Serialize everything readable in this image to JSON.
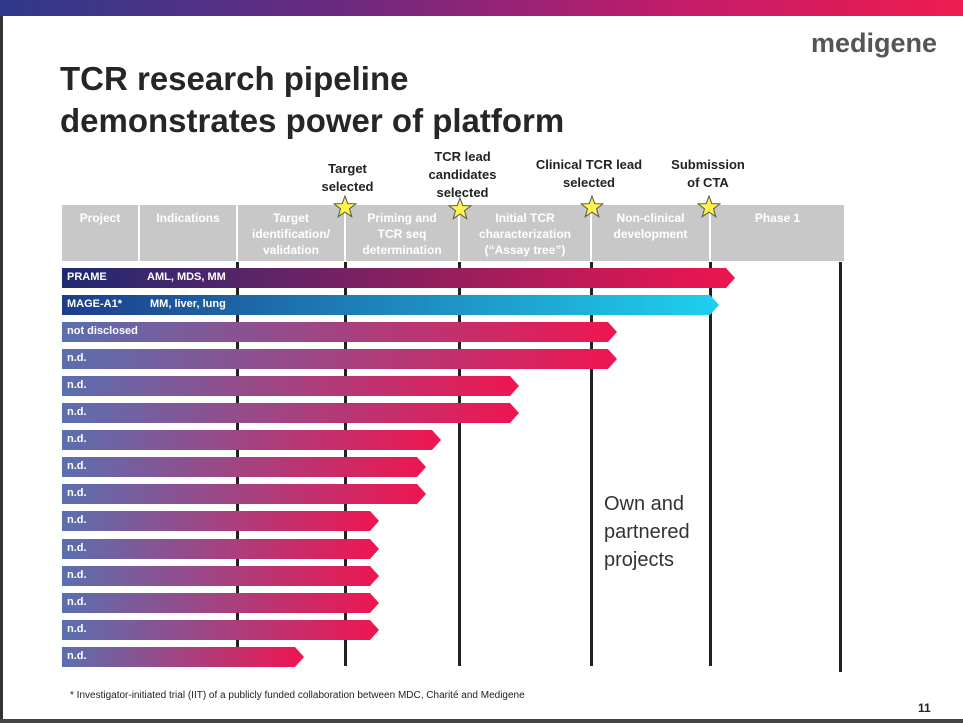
{
  "logo": "medigene",
  "title_lines": [
    "TCR research pipeline",
    "demonstrates power of platform"
  ],
  "milestones": [
    {
      "lines": [
        "Target",
        "selected"
      ]
    },
    {
      "lines": [
        "TCR lead",
        "candidates",
        "selected"
      ]
    },
    {
      "lines": [
        "Clinical TCR lead",
        "selected"
      ]
    },
    {
      "lines": [
        "Submission",
        "of CTA"
      ]
    }
  ],
  "columns": [
    {
      "lines": [
        "Project"
      ]
    },
    {
      "lines": [
        "Indications"
      ]
    },
    {
      "lines": [
        "Target",
        "identification/",
        "validation"
      ]
    },
    {
      "lines": [
        "Priming and",
        "TCR seq",
        "determination"
      ]
    },
    {
      "lines": [
        "Initial TCR",
        "characterization",
        "(“Assay tree”)"
      ]
    },
    {
      "lines": [
        "Non-clinical",
        "development"
      ]
    },
    {
      "lines": [
        "Phase 1"
      ]
    }
  ],
  "colors": {
    "bar_start": "#5a6fb0",
    "bar_end": "#ef1550",
    "prame_start": "#1f2a70",
    "mage_start": "#1d3d8a",
    "mage_end": "#1ed0f0",
    "header_bg": "#c8c8c8"
  },
  "projects": [
    {
      "name": "PRAME",
      "indication": "AML, MDS, MM",
      "progress": 0.86,
      "style": "prame"
    },
    {
      "name": "MAGE-A1*",
      "indication": "MM, liver, lung",
      "progress": 0.84,
      "style": "mage"
    },
    {
      "name": "not disclosed",
      "indication": "",
      "progress": 0.71,
      "style": "default"
    },
    {
      "name": "n.d.",
      "indication": "",
      "progress": 0.71,
      "style": "default"
    },
    {
      "name": "n.d.",
      "indication": "",
      "progress": 0.585,
      "style": "default"
    },
    {
      "name": "n.d.",
      "indication": "",
      "progress": 0.585,
      "style": "default"
    },
    {
      "name": "n.d.",
      "indication": "",
      "progress": 0.485,
      "style": "default"
    },
    {
      "name": "n.d.",
      "indication": "",
      "progress": 0.465,
      "style": "default"
    },
    {
      "name": "n.d.",
      "indication": "",
      "progress": 0.465,
      "style": "default"
    },
    {
      "name": "n.d.",
      "indication": "",
      "progress": 0.405,
      "style": "default"
    },
    {
      "name": "n.d.",
      "indication": "",
      "progress": 0.405,
      "style": "default"
    },
    {
      "name": "n.d.",
      "indication": "",
      "progress": 0.405,
      "style": "default"
    },
    {
      "name": "n.d.",
      "indication": "",
      "progress": 0.405,
      "style": "default"
    },
    {
      "name": "n.d.",
      "indication": "",
      "progress": 0.405,
      "style": "default"
    },
    {
      "name": "n.d.",
      "indication": "",
      "progress": 0.31,
      "style": "default"
    }
  ],
  "note_lines": [
    "Own and",
    "partnered",
    "projects"
  ],
  "footnote": "* Investigator-initiated trial (IIT) of a publicly funded collaboration between MDC, Charité and Medigene",
  "page_number": "11"
}
